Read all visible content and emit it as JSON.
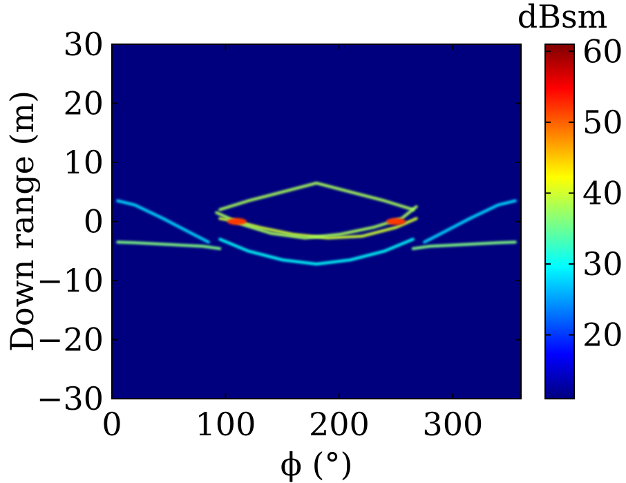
{
  "chart_data": {
    "type": "heatmap",
    "xlabel": "ϕ (°)",
    "ylabel": "Down range (m)",
    "xlim": [
      0,
      360
    ],
    "ylim": [
      -30,
      30
    ],
    "x_ticks": [
      "0",
      "100",
      "200",
      "300"
    ],
    "x_tick_values": [
      0,
      100,
      200,
      300
    ],
    "y_ticks": [
      "−30",
      "−20",
      "−10",
      "0",
      "10",
      "20",
      "30"
    ],
    "y_tick_values": [
      -30,
      -20,
      -10,
      0,
      10,
      20,
      30
    ],
    "colorbar": {
      "label": "dBsm",
      "range": [
        11,
        61
      ],
      "ticks": [
        "20",
        "30",
        "40",
        "50",
        "60"
      ],
      "tick_values": [
        20,
        30,
        40,
        50,
        60
      ],
      "colormap": "jet"
    },
    "background_level_dBsm": 11,
    "features": [
      {
        "name": "left near-range band",
        "x": [
          5,
          20,
          40,
          60,
          80,
          95
        ],
        "y": [
          -3.5,
          -3.6,
          -3.8,
          -4.0,
          -4.2,
          -4.6
        ],
        "dBsm": 36
      },
      {
        "name": "left far-range band",
        "x": [
          5,
          20,
          45,
          70,
          85
        ],
        "y": [
          3.5,
          2.8,
          0.5,
          -2.0,
          -3.5
        ],
        "dBsm": 28
      },
      {
        "name": "right near-range band",
        "x": [
          265,
          280,
          300,
          320,
          340,
          355
        ],
        "y": [
          -4.6,
          -4.2,
          -4.0,
          -3.8,
          -3.6,
          -3.5
        ],
        "dBsm": 36
      },
      {
        "name": "right far-range band",
        "x": [
          275,
          290,
          315,
          340,
          355
        ],
        "y": [
          -3.5,
          -2.0,
          0.5,
          2.8,
          3.5
        ],
        "dBsm": 28
      },
      {
        "name": "upper outer arc",
        "x": [
          95,
          120,
          150,
          180,
          210,
          240,
          265
        ],
        "y": [
          2.0,
          3.5,
          5.0,
          6.5,
          5.0,
          3.5,
          2.0
        ],
        "dBsm": 38
      },
      {
        "name": "lower outer arc",
        "x": [
          95,
          120,
          150,
          180,
          210,
          240,
          265
        ],
        "y": [
          -3.0,
          -5.0,
          -6.5,
          -7.2,
          -6.5,
          -5.0,
          -3.0
        ],
        "dBsm": 30
      },
      {
        "name": "crossing arc rising",
        "x": [
          95,
          110,
          130,
          160,
          190,
          220,
          250,
          268
        ],
        "y": [
          0.5,
          0.0,
          -1.0,
          -2.2,
          -2.8,
          -2.5,
          -1.0,
          0.5
        ],
        "dBsm": 40
      },
      {
        "name": "crossing arc falling",
        "x": [
          92,
          115,
          140,
          170,
          200,
          230,
          255,
          268
        ],
        "y": [
          1.5,
          -0.5,
          -2.0,
          -2.8,
          -2.2,
          -1.0,
          0.5,
          2.5
        ],
        "dBsm": 38
      },
      {
        "name": "hot spot left",
        "x": [
          110
        ],
        "y": [
          0.0
        ],
        "dBsm": 52
      },
      {
        "name": "hot spot right",
        "x": [
          250
        ],
        "y": [
          0.0
        ],
        "dBsm": 52
      }
    ]
  }
}
